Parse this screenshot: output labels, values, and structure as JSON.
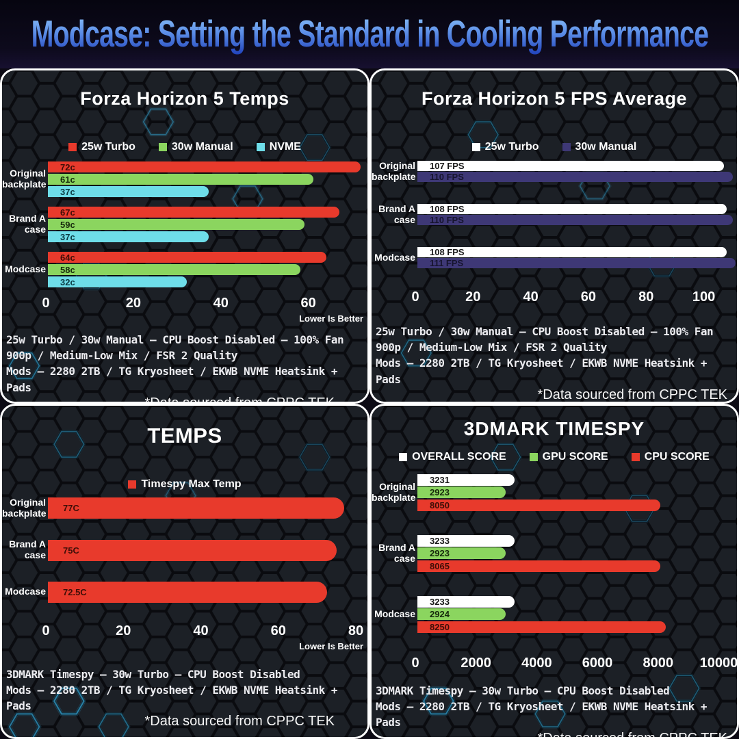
{
  "header": {
    "title": "Modcase: Setting the Standard in Cooling Performance",
    "text_gradient_top": "#8ec4f8",
    "text_gradient_bottom": "#1c3db8"
  },
  "colors": {
    "panel_border": "#ffffff",
    "panel_background": "#15171c",
    "hex_line": "#0a0b0f",
    "hex_face": "#1c2026",
    "accent_glow": "#2e8fb8"
  },
  "chart_data": [
    {
      "type": "bar",
      "title": "Forza Horizon 5 Temps",
      "series": [
        {
          "name": "25w Turbo",
          "color": "#e83a2c",
          "label_color": "#3f0e07"
        },
        {
          "name": "30w Manual",
          "color": "#8bd55f",
          "label_color": "#16290c"
        },
        {
          "name": "NVME",
          "color": "#6edde9",
          "label_color": "#0b3c44"
        }
      ],
      "categories": [
        "Original backplate",
        "Brand A case",
        "Modcase"
      ],
      "groups": [
        {
          "bars": [
            {
              "value": 72,
              "label": "72c"
            },
            {
              "value": 61,
              "label": "61c"
            },
            {
              "value": 37,
              "label": "37c"
            }
          ]
        },
        {
          "bars": [
            {
              "value": 67,
              "label": "67c"
            },
            {
              "value": 59,
              "label": "59c"
            },
            {
              "value": 37,
              "label": "37c"
            }
          ]
        },
        {
          "bars": [
            {
              "value": 64,
              "label": "64c"
            },
            {
              "value": 58,
              "label": "58c"
            },
            {
              "value": 32,
              "label": "32c"
            }
          ]
        }
      ],
      "axis": {
        "max": 73.5,
        "ticks": [
          {
            "value": 0,
            "label": "0"
          },
          {
            "value": 20,
            "label": "20"
          },
          {
            "value": 40,
            "label": "40"
          },
          {
            "value": 60,
            "label": "60"
          }
        ]
      },
      "note": "Lower Is Better",
      "footer": [
        "25w Turbo / 30w Manual – CPU Boost Disabled – 100% Fan",
        "900p / Medium-Low Mix / FSR 2 Quality",
        "Mods – 2280 2TB / TG Kryosheet / EKWB NVME Heatsink + Pads"
      ],
      "source": "*Data sourced from CPPC TEK"
    },
    {
      "type": "bar",
      "title": "Forza Horizon 5 FPS Average",
      "series": [
        {
          "name": "25w Turbo",
          "color": "#ffffff",
          "label_color": "#1a1a1a"
        },
        {
          "name": "30w Manual",
          "color": "#3e3876",
          "label_color": "#16142e"
        }
      ],
      "categories": [
        "Original backplate",
        "Brand A case",
        "Modcase"
      ],
      "groups": [
        {
          "bars": [
            {
              "value": 107,
              "label": "107 FPS"
            },
            {
              "value": 110,
              "label": "110 FPS"
            }
          ]
        },
        {
          "bars": [
            {
              "value": 108,
              "label": "108 FPS"
            },
            {
              "value": 110,
              "label": "110 FPS"
            }
          ]
        },
        {
          "bars": [
            {
              "value": 108,
              "label": "108 FPS"
            },
            {
              "value": 111,
              "label": "111 FPS"
            }
          ]
        }
      ],
      "axis": {
        "max": 111.5,
        "ticks": [
          {
            "value": 0,
            "label": "0"
          },
          {
            "value": 20,
            "label": "20"
          },
          {
            "value": 40,
            "label": "40"
          },
          {
            "value": 60,
            "label": "60"
          },
          {
            "value": 80,
            "label": "80"
          },
          {
            "value": 100,
            "label": "100"
          }
        ]
      },
      "note": "",
      "footer": [
        "25w Turbo / 30w Manual – CPU Boost Disabled – 100% Fan",
        "900p / Medium-Low Mix / FSR 2 Quality",
        "Mods – 2280 2TB / TG Kryosheet / EKWB NVME Heatsink + Pads"
      ],
      "source": "*Data sourced from CPPC TEK"
    },
    {
      "type": "bar",
      "title": "TEMPS",
      "series": [
        {
          "name": "Timespy Max Temp",
          "color": "#e83a2c",
          "label_color": "#3f0e07"
        }
      ],
      "categories": [
        "Original backplate",
        "Brand A case",
        "Modcase"
      ],
      "groups": [
        {
          "bars": [
            {
              "value": 77,
              "label": "77C"
            }
          ]
        },
        {
          "bars": [
            {
              "value": 75,
              "label": "75C"
            }
          ]
        },
        {
          "bars": [
            {
              "value": 72.5,
              "label": "72.5C"
            }
          ]
        }
      ],
      "axis": {
        "max": 83,
        "ticks": [
          {
            "value": 0,
            "label": "0"
          },
          {
            "value": 20,
            "label": "20"
          },
          {
            "value": 40,
            "label": "40"
          },
          {
            "value": 60,
            "label": "60"
          },
          {
            "value": 80,
            "label": "80"
          }
        ]
      },
      "note": "Lower Is Better",
      "footer": [
        "3DMARK Timespy – 30w Turbo – CPU Boost Disabled",
        "Mods – 2280 2TB / TG Kryosheet / EKWB NVME Heatsink + Pads"
      ],
      "source": "*Data sourced from CPPC TEK"
    },
    {
      "type": "bar",
      "title": "3DMARK TIMESPY",
      "series": [
        {
          "name": "OVERALL SCORE",
          "color": "#ffffff",
          "label_color": "#1a1a1a"
        },
        {
          "name": "GPU SCORE",
          "color": "#8bd55f",
          "label_color": "#16290c"
        },
        {
          "name": "CPU SCORE",
          "color": "#e83a2c",
          "label_color": "#3f0e07"
        }
      ],
      "categories": [
        "Original backplate",
        "Brand A case",
        "Modcase"
      ],
      "groups": [
        {
          "bars": [
            {
              "value": 3231,
              "label": "3231"
            },
            {
              "value": 2923,
              "label": "2923"
            },
            {
              "value": 8050,
              "label": "8050"
            }
          ]
        },
        {
          "bars": [
            {
              "value": 3233,
              "label": "3233"
            },
            {
              "value": 2923,
              "label": "2923"
            },
            {
              "value": 8065,
              "label": "8065"
            }
          ]
        },
        {
          "bars": [
            {
              "value": 3233,
              "label": "3233"
            },
            {
              "value": 2924,
              "label": "2924"
            },
            {
              "value": 8250,
              "label": "8250"
            }
          ]
        }
      ],
      "axis": {
        "max": 10600,
        "ticks": [
          {
            "value": 0,
            "label": "0"
          },
          {
            "value": 2000,
            "label": "2000"
          },
          {
            "value": 4000,
            "label": "4000"
          },
          {
            "value": 6000,
            "label": "6000"
          },
          {
            "value": 8000,
            "label": "8000"
          },
          {
            "value": 10000,
            "label": "10000"
          }
        ]
      },
      "note": "",
      "footer": [
        "3DMARK Timespy – 30w Turbo – CPU Boost Disabled",
        "Mods – 2280 2TB / TG Kryosheet / EKWB NVME Heatsink + Pads"
      ],
      "source": "*Data sourced from CPPC TEK"
    }
  ]
}
